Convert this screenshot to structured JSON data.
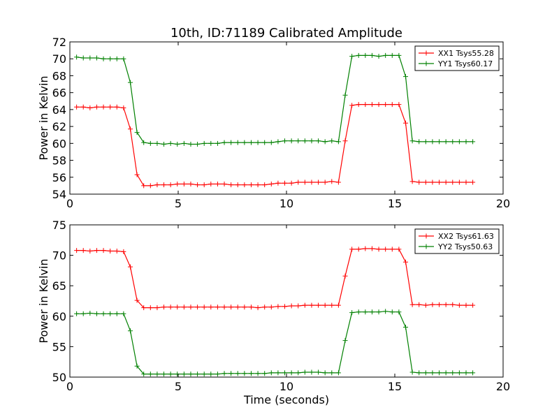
{
  "figure": {
    "title": "10th, ID:71189 Calibrated Amplitude",
    "xlabel": "Time (seconds)"
  },
  "colors": {
    "red": "#ff0000",
    "green": "#008000"
  },
  "chart_data": [
    {
      "type": "line",
      "title": "10th, ID:71189 Calibrated Amplitude",
      "xlabel": "",
      "ylabel": "Power in Kelvin",
      "xlim": [
        0,
        20
      ],
      "ylim": [
        54,
        72
      ],
      "xticks": [
        0,
        5,
        10,
        15,
        20
      ],
      "yticks": [
        54,
        56,
        58,
        60,
        62,
        64,
        66,
        68,
        70,
        72
      ],
      "grid": false,
      "legend_position": "top-right",
      "x": [
        0.31,
        0.62,
        0.93,
        1.24,
        1.55,
        1.86,
        2.17,
        2.48,
        2.79,
        3.1,
        3.41,
        3.72,
        4.03,
        4.34,
        4.65,
        4.96,
        5.27,
        5.58,
        5.89,
        6.2,
        6.51,
        6.82,
        7.13,
        7.44,
        7.75,
        8.06,
        8.37,
        8.68,
        8.99,
        9.3,
        9.61,
        9.92,
        10.23,
        10.54,
        10.85,
        11.16,
        11.47,
        11.78,
        12.09,
        12.4,
        12.71,
        13.02,
        13.33,
        13.64,
        13.95,
        14.26,
        14.57,
        14.88,
        15.19,
        15.5,
        15.81,
        16.12,
        16.43,
        16.74,
        17.05,
        17.36,
        17.67,
        17.98,
        18.29,
        18.6
      ],
      "series": [
        {
          "name": "XX1 Tsys55.28",
          "color": "#ff0000",
          "values": [
            64.3,
            64.3,
            64.2,
            64.3,
            64.3,
            64.3,
            64.3,
            64.2,
            61.7,
            56.3,
            55.0,
            55.0,
            55.1,
            55.1,
            55.1,
            55.2,
            55.2,
            55.2,
            55.1,
            55.1,
            55.2,
            55.2,
            55.2,
            55.1,
            55.1,
            55.1,
            55.1,
            55.1,
            55.1,
            55.2,
            55.3,
            55.3,
            55.3,
            55.4,
            55.4,
            55.4,
            55.4,
            55.4,
            55.5,
            55.4,
            60.3,
            64.5,
            64.6,
            64.6,
            64.6,
            64.6,
            64.6,
            64.6,
            64.6,
            62.4,
            55.5,
            55.4,
            55.4,
            55.4,
            55.4,
            55.4,
            55.4,
            55.4,
            55.4,
            55.4
          ]
        },
        {
          "name": "YY1 Tsys60.17",
          "color": "#008000",
          "values": [
            70.2,
            70.1,
            70.1,
            70.1,
            70.0,
            70.0,
            70.0,
            70.0,
            67.2,
            61.3,
            60.1,
            60.0,
            60.0,
            59.9,
            60.0,
            59.9,
            60.0,
            59.9,
            59.9,
            60.0,
            60.0,
            60.0,
            60.1,
            60.1,
            60.1,
            60.1,
            60.1,
            60.1,
            60.1,
            60.1,
            60.2,
            60.3,
            60.3,
            60.3,
            60.3,
            60.3,
            60.3,
            60.2,
            60.3,
            60.2,
            65.7,
            70.3,
            70.4,
            70.4,
            70.4,
            70.3,
            70.4,
            70.4,
            70.4,
            67.9,
            60.3,
            60.2,
            60.2,
            60.2,
            60.2,
            60.2,
            60.2,
            60.2,
            60.2,
            60.2
          ]
        }
      ]
    },
    {
      "type": "line",
      "title": "",
      "xlabel": "Time (seconds)",
      "ylabel": "Power in Kelvin",
      "xlim": [
        0,
        20
      ],
      "ylim": [
        50,
        75
      ],
      "xticks": [
        0,
        5,
        10,
        15,
        20
      ],
      "yticks": [
        50,
        55,
        60,
        65,
        70,
        75
      ],
      "grid": false,
      "legend_position": "top-right",
      "x": [
        0.31,
        0.62,
        0.93,
        1.24,
        1.55,
        1.86,
        2.17,
        2.48,
        2.79,
        3.1,
        3.41,
        3.72,
        4.03,
        4.34,
        4.65,
        4.96,
        5.27,
        5.58,
        5.89,
        6.2,
        6.51,
        6.82,
        7.13,
        7.44,
        7.75,
        8.06,
        8.37,
        8.68,
        8.99,
        9.3,
        9.61,
        9.92,
        10.23,
        10.54,
        10.85,
        11.16,
        11.47,
        11.78,
        12.09,
        12.4,
        12.71,
        13.02,
        13.33,
        13.64,
        13.95,
        14.26,
        14.57,
        14.88,
        15.19,
        15.5,
        15.81,
        16.12,
        16.43,
        16.74,
        17.05,
        17.36,
        17.67,
        17.98,
        18.29,
        18.6
      ],
      "series": [
        {
          "name": "XX2 Tsys61.63",
          "color": "#ff0000",
          "values": [
            70.8,
            70.8,
            70.7,
            70.8,
            70.8,
            70.7,
            70.7,
            70.6,
            68.1,
            62.6,
            61.4,
            61.4,
            61.4,
            61.5,
            61.5,
            61.5,
            61.5,
            61.5,
            61.5,
            61.5,
            61.5,
            61.5,
            61.5,
            61.5,
            61.5,
            61.5,
            61.5,
            61.4,
            61.5,
            61.5,
            61.6,
            61.6,
            61.7,
            61.7,
            61.8,
            61.8,
            61.8,
            61.8,
            61.8,
            61.8,
            66.6,
            71.0,
            71.0,
            71.1,
            71.1,
            71.0,
            71.0,
            71.0,
            71.0,
            68.9,
            61.9,
            61.9,
            61.8,
            61.9,
            61.9,
            61.9,
            61.9,
            61.8,
            61.8,
            61.8
          ]
        },
        {
          "name": "YY2 Tsys50.63",
          "color": "#008000",
          "values": [
            60.4,
            60.4,
            60.5,
            60.4,
            60.4,
            60.4,
            60.4,
            60.4,
            57.6,
            51.8,
            50.5,
            50.5,
            50.5,
            50.5,
            50.5,
            50.5,
            50.5,
            50.5,
            50.5,
            50.5,
            50.5,
            50.5,
            50.6,
            50.6,
            50.6,
            50.6,
            50.6,
            50.6,
            50.6,
            50.7,
            50.7,
            50.7,
            50.7,
            50.7,
            50.8,
            50.8,
            50.8,
            50.7,
            50.7,
            50.7,
            56.0,
            60.6,
            60.7,
            60.7,
            60.7,
            60.7,
            60.8,
            60.7,
            60.7,
            58.2,
            50.8,
            50.7,
            50.7,
            50.7,
            50.7,
            50.7,
            50.7,
            50.7,
            50.7,
            50.7
          ]
        }
      ]
    }
  ]
}
